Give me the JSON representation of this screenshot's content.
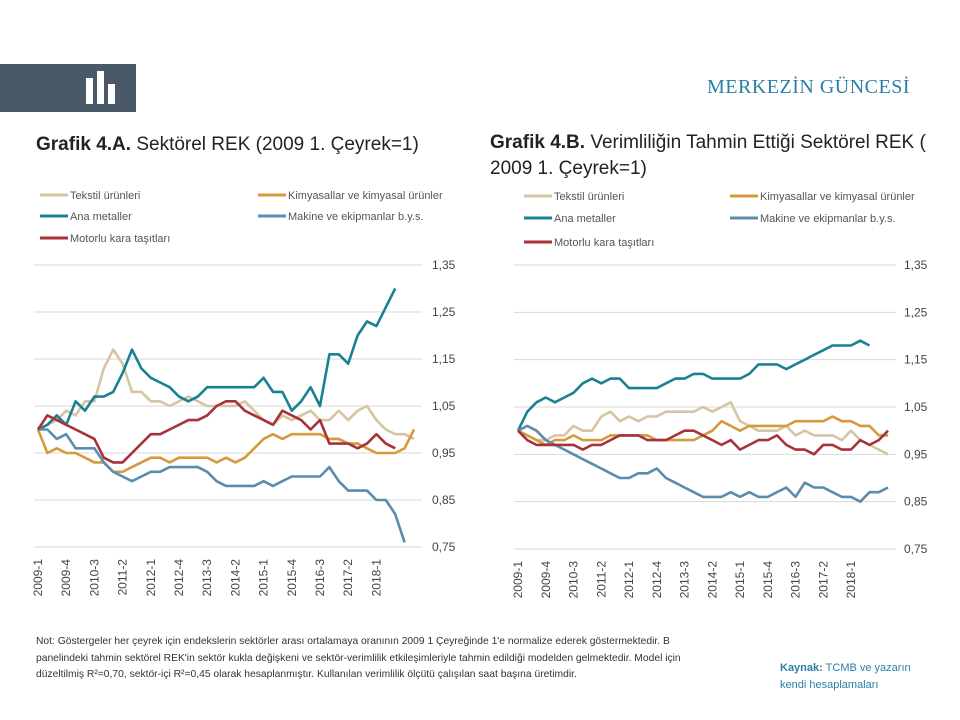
{
  "header": {
    "brand": "MERKEZİN GÜNCESİ"
  },
  "chart_data": [
    {
      "type": "line",
      "title_bold": "Grafik 4.A.",
      "title_rest": " Sektörel REK (2009 1. Çeyrek=1)",
      "ylim": [
        0.75,
        1.35
      ],
      "yticks": [
        "1,35",
        "1,25",
        "1,15",
        "1,05",
        "0,95",
        "0,85",
        "0,75"
      ],
      "ytick_values": [
        1.35,
        1.25,
        1.15,
        1.05,
        0.95,
        0.85,
        0.75
      ],
      "xticks": [
        "2009-1",
        "2009-4",
        "2010-3",
        "2011-2",
        "2012-1",
        "2012-4",
        "2013-3",
        "2014-2",
        "2015-1",
        "2015-4",
        "2016-3",
        "2017-2",
        "2018-1"
      ],
      "grid": true,
      "legend_position": "top",
      "series": [
        {
          "name": "Tekstil ürünleri",
          "color": "#d7c4a3",
          "values": [
            1.0,
            1.01,
            1.02,
            1.04,
            1.03,
            1.06,
            1.06,
            1.13,
            1.17,
            1.14,
            1.08,
            1.08,
            1.06,
            1.06,
            1.05,
            1.06,
            1.07,
            1.06,
            1.05,
            1.05,
            1.05,
            1.05,
            1.06,
            1.04,
            1.02,
            1.01,
            1.03,
            1.02,
            1.03,
            1.04,
            1.02,
            1.02,
            1.04,
            1.02,
            1.04,
            1.05,
            1.02,
            1.0,
            0.99,
            0.99,
            0.98
          ]
        },
        {
          "name": "Kimyasallar ve kimyasal ürünler",
          "color": "#d69a3d",
          "values": [
            1.0,
            0.95,
            0.96,
            0.95,
            0.95,
            0.94,
            0.93,
            0.93,
            0.91,
            0.91,
            0.92,
            0.93,
            0.94,
            0.94,
            0.93,
            0.94,
            0.94,
            0.94,
            0.94,
            0.93,
            0.94,
            0.93,
            0.94,
            0.96,
            0.98,
            0.99,
            0.98,
            0.99,
            0.99,
            0.99,
            0.99,
            0.98,
            0.98,
            0.97,
            0.97,
            0.96,
            0.95,
            0.95,
            0.95,
            0.96,
            1.0
          ]
        },
        {
          "name": "Ana metaller",
          "color": "#1a8193",
          "values": [
            1.0,
            1.01,
            1.03,
            1.01,
            1.06,
            1.04,
            1.07,
            1.07,
            1.08,
            1.12,
            1.17,
            1.13,
            1.11,
            1.1,
            1.09,
            1.07,
            1.06,
            1.07,
            1.09,
            1.09,
            1.09,
            1.09,
            1.09,
            1.09,
            1.11,
            1.08,
            1.08,
            1.04,
            1.06,
            1.09,
            1.05,
            1.16,
            1.16,
            1.14,
            1.2,
            1.23,
            1.22,
            1.26,
            1.3
          ]
        },
        {
          "name": "Makine ve ekipmanlar b.y.s.",
          "color": "#5a8cad",
          "values": [
            1.0,
            1.0,
            0.98,
            0.99,
            0.96,
            0.96,
            0.96,
            0.93,
            0.91,
            0.9,
            0.89,
            0.9,
            0.91,
            0.91,
            0.92,
            0.92,
            0.92,
            0.92,
            0.91,
            0.89,
            0.88,
            0.88,
            0.88,
            0.88,
            0.89,
            0.88,
            0.89,
            0.9,
            0.9,
            0.9,
            0.9,
            0.92,
            0.89,
            0.87,
            0.87,
            0.87,
            0.85,
            0.85,
            0.82,
            0.76
          ]
        },
        {
          "name": "Motorlu kara taşıtları",
          "color": "#a8323a",
          "values": [
            1.0,
            1.03,
            1.02,
            1.01,
            1.0,
            0.99,
            0.98,
            0.94,
            0.93,
            0.93,
            0.95,
            0.97,
            0.99,
            0.99,
            1.0,
            1.01,
            1.02,
            1.02,
            1.03,
            1.05,
            1.06,
            1.06,
            1.04,
            1.03,
            1.02,
            1.01,
            1.04,
            1.03,
            1.02,
            1.0,
            1.02,
            0.97,
            0.97,
            0.97,
            0.96,
            0.97,
            0.99,
            0.97,
            0.96
          ]
        }
      ]
    },
    {
      "type": "line",
      "title_bold": "Grafik 4.B.",
      "title_rest": " Verimliliğin Tahmin Ettiği Sektörel REK ( 2009 1. Çeyrek=1)",
      "ylim": [
        0.75,
        1.35
      ],
      "yticks": [
        "1,35",
        "1,25",
        "1,15",
        "1,05",
        "0,95",
        "0,85",
        "0,75"
      ],
      "ytick_values": [
        1.35,
        1.25,
        1.15,
        1.05,
        0.95,
        0.85,
        0.75
      ],
      "xticks": [
        "2009-1",
        "2009-4",
        "2010-3",
        "2011-2",
        "2012-1",
        "2012-4",
        "2013-3",
        "2014-2",
        "2015-1",
        "2015-4",
        "2016-3",
        "2017-2",
        "2018-1"
      ],
      "grid": true,
      "legend_position": "top",
      "series": [
        {
          "name": "Tekstil ürünleri",
          "color": "#d7c4a3",
          "values": [
            1.0,
            0.99,
            0.98,
            0.98,
            0.99,
            0.99,
            1.01,
            1.0,
            1.0,
            1.03,
            1.04,
            1.02,
            1.03,
            1.02,
            1.03,
            1.03,
            1.04,
            1.04,
            1.04,
            1.04,
            1.05,
            1.04,
            1.05,
            1.06,
            1.02,
            1.01,
            1.0,
            1.0,
            1.0,
            1.01,
            0.99,
            1.0,
            0.99,
            0.99,
            0.99,
            0.98,
            1.0,
            0.98,
            0.97,
            0.96,
            0.95
          ]
        },
        {
          "name": "Kimyasallar ve kimyasal ürünler",
          "color": "#d69a3d",
          "values": [
            1.0,
            0.99,
            0.98,
            0.97,
            0.98,
            0.98,
            0.99,
            0.98,
            0.98,
            0.98,
            0.99,
            0.99,
            0.99,
            0.99,
            0.99,
            0.98,
            0.98,
            0.98,
            0.98,
            0.98,
            0.99,
            1.0,
            1.02,
            1.01,
            1.0,
            1.01,
            1.01,
            1.01,
            1.01,
            1.01,
            1.02,
            1.02,
            1.02,
            1.02,
            1.03,
            1.02,
            1.02,
            1.01,
            1.01,
            0.99,
            0.99
          ]
        },
        {
          "name": "Ana metaller",
          "color": "#1a8193",
          "values": [
            1.0,
            1.04,
            1.06,
            1.07,
            1.06,
            1.07,
            1.08,
            1.1,
            1.11,
            1.1,
            1.11,
            1.11,
            1.09,
            1.09,
            1.09,
            1.09,
            1.1,
            1.11,
            1.11,
            1.12,
            1.12,
            1.11,
            1.11,
            1.11,
            1.11,
            1.12,
            1.14,
            1.14,
            1.14,
            1.13,
            1.14,
            1.15,
            1.16,
            1.17,
            1.18,
            1.18,
            1.18,
            1.19,
            1.18
          ]
        },
        {
          "name": "Makine ve ekipmanlar b.y.s.",
          "color": "#5a8cad",
          "values": [
            1.0,
            1.01,
            1.0,
            0.98,
            0.97,
            0.96,
            0.95,
            0.94,
            0.93,
            0.92,
            0.91,
            0.9,
            0.9,
            0.91,
            0.91,
            0.92,
            0.9,
            0.89,
            0.88,
            0.87,
            0.86,
            0.86,
            0.86,
            0.87,
            0.86,
            0.87,
            0.86,
            0.86,
            0.87,
            0.88,
            0.86,
            0.89,
            0.88,
            0.88,
            0.87,
            0.86,
            0.86,
            0.85,
            0.87,
            0.87,
            0.88
          ]
        },
        {
          "name": "Motorlu kara taşıtları",
          "color": "#a8323a",
          "values": [
            1.0,
            0.98,
            0.97,
            0.97,
            0.97,
            0.97,
            0.97,
            0.96,
            0.97,
            0.97,
            0.98,
            0.99,
            0.99,
            0.99,
            0.98,
            0.98,
            0.98,
            0.99,
            1.0,
            1.0,
            0.99,
            0.98,
            0.97,
            0.98,
            0.96,
            0.97,
            0.98,
            0.98,
            0.99,
            0.97,
            0.96,
            0.96,
            0.95,
            0.97,
            0.97,
            0.96,
            0.96,
            0.98,
            0.97,
            0.98,
            1.0
          ]
        }
      ]
    }
  ],
  "note": "Not: Göstergeler her çeyrek için endekslerin sektörler arası ortalamaya oranının 2009 1 Çeyreğinde 1'e normalize ederek göstermektedir. B panelindeki tahmin sektörel REK'in sektör kukla değişkeni ve sektör-verimlilik etkileşimleriyle tahmin edildiği modelden gelmektedir. Model için düzeltilmiş R²=0,70, sektör-içi R²=0,45 olarak hesaplanmıştır. Kullanılan verimlilik ölçütü çalışılan saat başına üretimdir.",
  "source": {
    "label": "Kaynak:",
    "text": " TCMB ve yazarın kendi hesaplamaları"
  }
}
